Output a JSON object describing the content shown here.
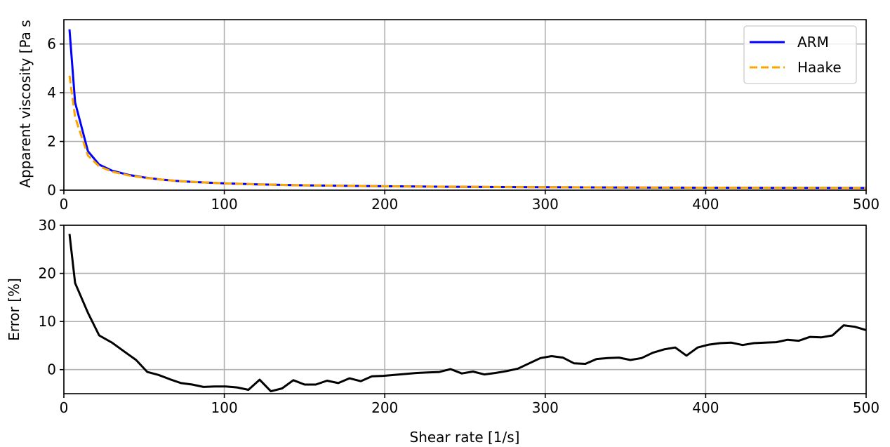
{
  "chart_data": [
    {
      "type": "line",
      "title": "",
      "xlabel": "",
      "ylabel": "Apparent viscosity [Pa s",
      "xlim": [
        0,
        500
      ],
      "ylim": [
        0,
        7
      ],
      "xticks": [
        "0",
        "100",
        "200",
        "300",
        "400",
        "500"
      ],
      "yticks": [
        "0",
        "2",
        "4",
        "6"
      ],
      "grid": true,
      "legend_position": "top-right",
      "series": [
        {
          "name": "ARM",
          "color": "#0000ff",
          "style": "solid",
          "x": [
            3.5,
            7,
            15,
            22,
            30,
            40,
            50,
            60,
            70,
            80,
            90,
            100,
            120,
            150,
            200,
            250,
            300,
            350,
            400,
            450,
            500
          ],
          "y": [
            6.6,
            3.6,
            1.6,
            1.05,
            0.8,
            0.63,
            0.52,
            0.44,
            0.38,
            0.34,
            0.31,
            0.28,
            0.24,
            0.2,
            0.16,
            0.135,
            0.12,
            0.11,
            0.1,
            0.095,
            0.09
          ]
        },
        {
          "name": "Haake",
          "color": "#ffa500",
          "style": "dashed",
          "x": [
            3.5,
            7,
            15,
            22,
            30,
            40,
            50,
            60,
            70,
            80,
            90,
            100,
            120,
            150,
            200,
            250,
            300,
            350,
            400,
            450,
            500
          ],
          "y": [
            4.7,
            3.0,
            1.42,
            0.98,
            0.76,
            0.61,
            0.51,
            0.44,
            0.38,
            0.34,
            0.31,
            0.28,
            0.24,
            0.2,
            0.16,
            0.135,
            0.12,
            0.11,
            0.1,
            0.095,
            0.09
          ]
        }
      ]
    },
    {
      "type": "line",
      "title": "",
      "xlabel": "Shear rate [1/s]",
      "ylabel": "Error [%]",
      "xlim": [
        0,
        500
      ],
      "ylim": [
        -5,
        30
      ],
      "xticks": [
        "0",
        "100",
        "200",
        "300",
        "400",
        "500"
      ],
      "yticks": [
        "0",
        "10",
        "20",
        "30"
      ],
      "grid": true,
      "series": [
        {
          "color": "#000000",
          "style": "solid",
          "x": [
            3.5,
            7,
            15,
            22,
            30,
            40,
            45,
            52,
            59,
            66,
            73,
            80,
            87,
            94,
            101,
            108,
            115,
            122,
            129,
            136,
            143,
            150,
            157,
            164,
            171,
            178,
            185,
            192,
            199,
            206,
            213,
            220,
            227,
            234,
            241,
            248,
            255,
            262,
            269,
            276,
            283,
            290,
            297,
            304,
            311,
            318,
            325,
            332,
            339,
            346,
            353,
            360,
            367,
            374,
            381,
            388,
            395,
            402,
            409,
            416,
            423,
            430,
            437,
            444,
            451,
            458,
            465,
            472,
            479,
            486,
            493,
            500
          ],
          "y": [
            28.2,
            18,
            11.8,
            7.1,
            5.6,
            3.2,
            2.0,
            -0.5,
            -1.1,
            -2.0,
            -2.8,
            -3.1,
            -3.6,
            -3.5,
            -3.5,
            -3.7,
            -4.2,
            -2.1,
            -4.5,
            -3.9,
            -2.2,
            -3.1,
            -3.1,
            -2.3,
            -2.8,
            -1.8,
            -2.4,
            -1.4,
            -1.3,
            -1.1,
            -0.9,
            -0.7,
            -0.6,
            -0.5,
            0.1,
            -0.8,
            -0.4,
            -1.0,
            -0.7,
            -0.3,
            0.2,
            1.3,
            2.4,
            2.8,
            2.5,
            1.3,
            1.2,
            2.2,
            2.4,
            2.5,
            2.0,
            2.4,
            3.5,
            4.2,
            4.6,
            2.9,
            4.6,
            5.2,
            5.5,
            5.6,
            5.1,
            5.5,
            5.6,
            5.7,
            6.2,
            6.0,
            6.8,
            6.7,
            7.1,
            9.2,
            8.9,
            8.2
          ]
        }
      ]
    }
  ]
}
